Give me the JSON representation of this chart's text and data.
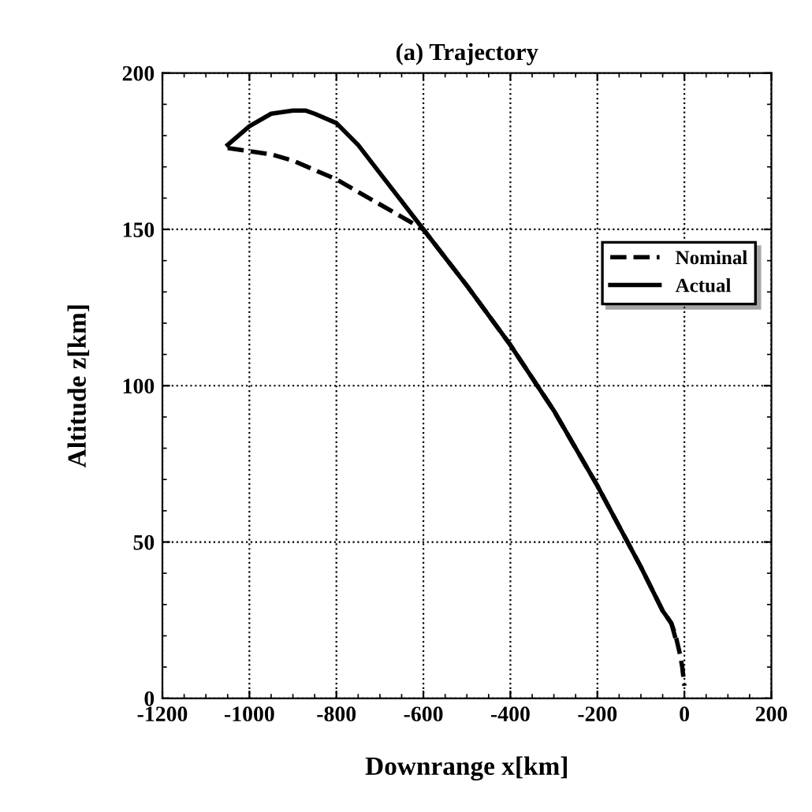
{
  "chart_data": {
    "type": "line",
    "title": "(a) Trajectory",
    "xlabel": "Downrange x[km]",
    "ylabel": "Altitude z[km]",
    "xlim": [
      -1200,
      200
    ],
    "xticks": [
      -1200,
      -1000,
      -800,
      -600,
      -400,
      -200,
      0,
      200
    ],
    "ylim": [
      0,
      200
    ],
    "yticks": [
      0,
      50,
      100,
      150,
      200
    ],
    "grid": true,
    "legend": "right",
    "series": [
      {
        "name": "Nominal",
        "color": "#000000",
        "line_style": "dashed",
        "x": [
          -1050,
          -1000,
          -950,
          -900,
          -850,
          -800,
          -750,
          -700,
          -650,
          -600,
          -500,
          -400,
          -300,
          -200,
          -150,
          -100,
          -50,
          -30,
          -20,
          -10,
          -5,
          0
        ],
        "values": [
          176,
          175,
          174,
          172,
          169,
          166,
          162,
          158,
          154,
          150,
          132,
          113,
          92,
          68,
          55,
          42,
          28,
          24,
          20,
          14,
          10,
          4
        ]
      },
      {
        "name": "Actual",
        "color": "#000000",
        "line_style": "solid",
        "x": [
          -1050,
          -1000,
          -950,
          -900,
          -870,
          -850,
          -800,
          -750,
          -700,
          -650,
          -600,
          -500,
          -400,
          -300,
          -200,
          -150,
          -100,
          -50,
          -30,
          -22
        ],
        "values": [
          177,
          183,
          187,
          188,
          188,
          187,
          184,
          177,
          168,
          159,
          150,
          132,
          113,
          92,
          68,
          55,
          42,
          28,
          24,
          20
        ]
      }
    ]
  }
}
